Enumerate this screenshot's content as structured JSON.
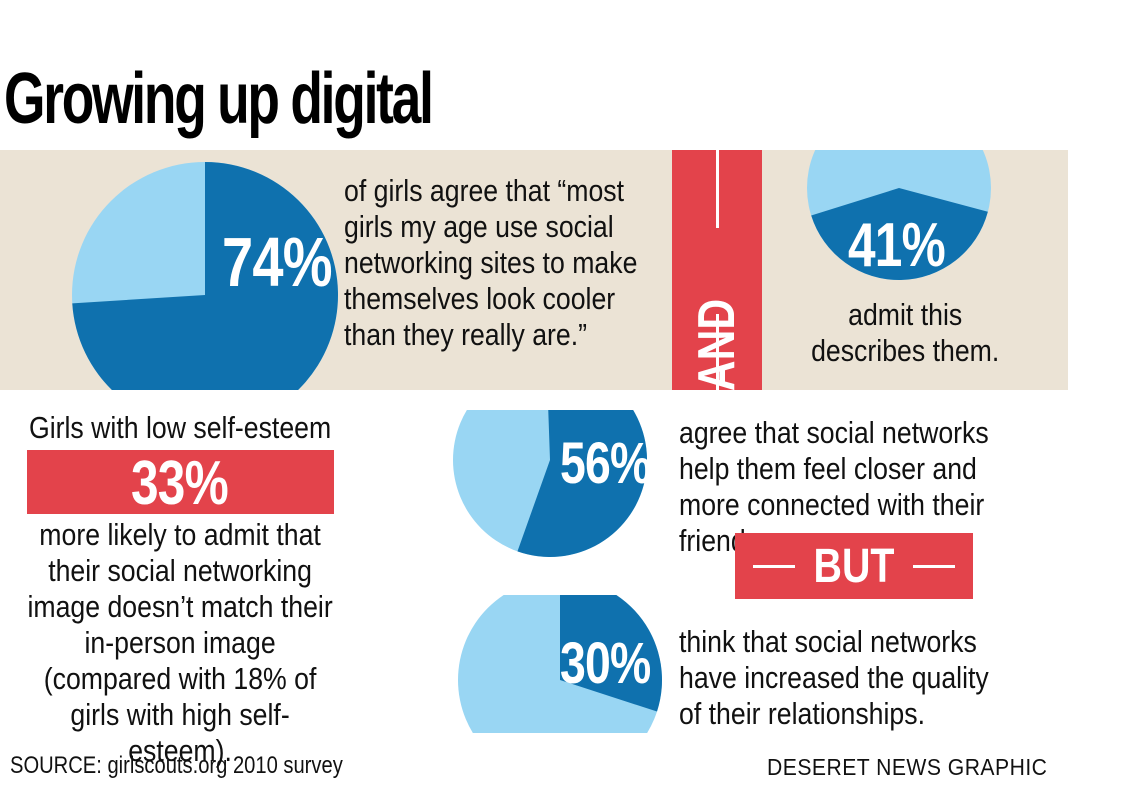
{
  "title": "Growing up digital",
  "colors": {
    "dark_blue": "#0f71ae",
    "light_blue": "#99d6f3",
    "red": "#e3434b",
    "beige": "#ebe3d5"
  },
  "chart_data": [
    {
      "type": "pie",
      "value_label": "74%",
      "values": [
        74,
        26
      ],
      "text": "of girls agree that “most girls my age use social networking sites to make themselves look cooler than they really are.”"
    },
    {
      "type": "pie",
      "value_label": "41%",
      "values": [
        41,
        59
      ],
      "text": "admit this describes them."
    },
    {
      "type": "pie",
      "value_label": "56%",
      "values": [
        56,
        44
      ],
      "text": "agree that social networks help them feel closer and more connected with their friends."
    },
    {
      "type": "pie",
      "value_label": "30%",
      "values": [
        30,
        70
      ],
      "text": "think that social networks have increased the quality of their relationships."
    }
  ],
  "and_label": "AND",
  "but_label": "BUT",
  "low_esteem": {
    "lead": "Girls with low self-esteem are",
    "pct": "33%",
    "text": "more likely to admit that their social networking image doesn’t match their in-person image (compared with 18% of girls with high self-esteem)."
  },
  "source": "SOURCE: girlscouts.org 2010 survey",
  "credit": "DESERET NEWS GRAPHIC"
}
